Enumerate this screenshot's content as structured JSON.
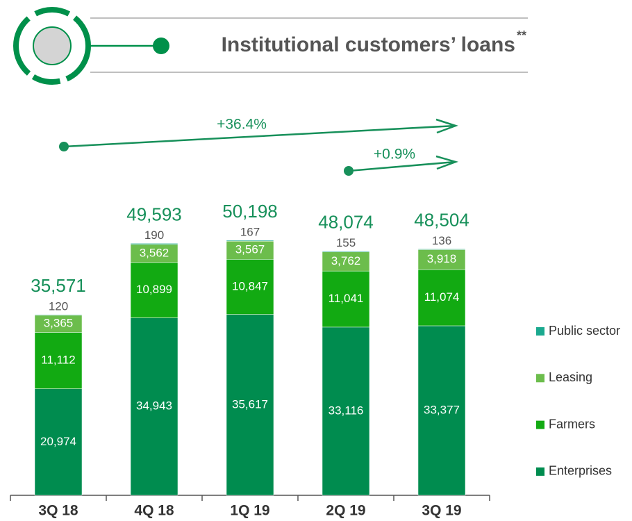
{
  "chart_data": {
    "type": "stacked_bar",
    "title": "Institutional customers’ loans",
    "title_marker": "**",
    "categories": [
      "3Q 18",
      "4Q 18",
      "1Q 19",
      "2Q 19",
      "3Q 19"
    ],
    "series": [
      {
        "name": "Enterprises",
        "color": "#008c4f",
        "values": [
          20974,
          34943,
          35617,
          33116,
          33377
        ],
        "value_labels": [
          "20,974",
          "34,943",
          "35,617",
          "33,116",
          "33,377"
        ]
      },
      {
        "name": "Farmers",
        "color": "#12aa12",
        "values": [
          11112,
          10899,
          10847,
          11041,
          11074
        ],
        "value_labels": [
          "11,112",
          "10,899",
          "10,847",
          "11,041",
          "11,074"
        ]
      },
      {
        "name": "Leasing",
        "color": "#6cbd4c",
        "values": [
          3365,
          3562,
          3567,
          3762,
          3918
        ],
        "value_labels": [
          "3,365",
          "3,562",
          "3,567",
          "3,762",
          "3,918"
        ]
      },
      {
        "name": "Public sector",
        "color": "#1aa98f",
        "values": [
          120,
          190,
          167,
          155,
          136
        ]
      }
    ],
    "totals": {
      "values": [
        35571,
        49593,
        50198,
        48074,
        48504
      ],
      "value_labels": [
        "35,571",
        "49,593",
        "50,198",
        "48,074",
        "48,504"
      ]
    },
    "annotations": [
      {
        "text": "+36.4%"
      },
      {
        "text": "+0.9%"
      }
    ],
    "legend": "right"
  }
}
